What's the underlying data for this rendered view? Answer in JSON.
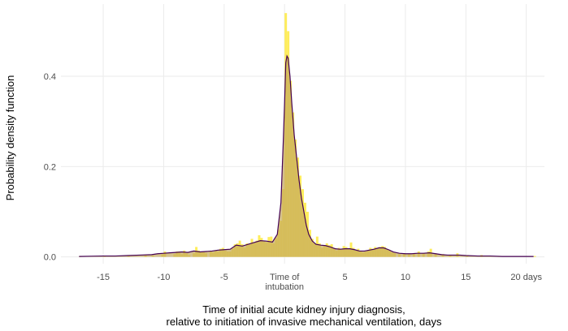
{
  "chart_data": {
    "type": "area",
    "title": "",
    "xlabel_line1": "Time of initial acute kidney injury diagnosis,",
    "xlabel_line2": "relative to initiation of invasive mechanical ventilation, days",
    "ylabel": "Probability density function",
    "xlim": [
      -18.5,
      21.5
    ],
    "ylim": [
      -0.015,
      0.56
    ],
    "grid": true,
    "x_ticks": [
      {
        "value": -15,
        "label": "-15"
      },
      {
        "value": -10,
        "label": "-10"
      },
      {
        "value": -5,
        "label": "-5"
      },
      {
        "value": 0,
        "label": "Time of",
        "label2": "intubation"
      },
      {
        "value": 5,
        "label": "5"
      },
      {
        "value": 10,
        "label": "10"
      },
      {
        "value": 15,
        "label": "15"
      },
      {
        "value": 20,
        "label": "20 days"
      }
    ],
    "y_ticks": [
      {
        "value": 0.0,
        "label": "0.0"
      },
      {
        "value": 0.2,
        "label": "0.2"
      },
      {
        "value": 0.4,
        "label": "0.4"
      }
    ],
    "histogram": {
      "bin_width": 0.2,
      "fill_color": "#FDE725",
      "fill_opacity": 0.75,
      "bins": [
        [
          -17.0,
          0.002
        ],
        [
          -15.0,
          0.002
        ],
        [
          -13.0,
          0.002
        ],
        [
          -11.6,
          0.004
        ],
        [
          -11.0,
          0.003
        ],
        [
          -10.2,
          0.006
        ],
        [
          -10.0,
          0.012
        ],
        [
          -9.2,
          0.006
        ],
        [
          -9.0,
          0.012
        ],
        [
          -8.8,
          0.012
        ],
        [
          -8.6,
          0.006
        ],
        [
          -8.4,
          0.014
        ],
        [
          -8.2,
          0.008
        ],
        [
          -8.0,
          0.004
        ],
        [
          -7.6,
          0.008
        ],
        [
          -7.4,
          0.022
        ],
        [
          -7.2,
          0.014
        ],
        [
          -7.0,
          0.01
        ],
        [
          -6.8,
          0.012
        ],
        [
          -6.6,
          0.008
        ],
        [
          -6.2,
          0.012
        ],
        [
          -6.0,
          0.01
        ],
        [
          -5.8,
          0.014
        ],
        [
          -5.6,
          0.012
        ],
        [
          -5.4,
          0.018
        ],
        [
          -5.2,
          0.02
        ],
        [
          -5.0,
          0.014
        ],
        [
          -4.8,
          0.012
        ],
        [
          -4.6,
          0.012
        ],
        [
          -4.4,
          0.018
        ],
        [
          -4.2,
          0.028
        ],
        [
          -4.0,
          0.03
        ],
        [
          -3.8,
          0.036
        ],
        [
          -3.6,
          0.028
        ],
        [
          -3.4,
          0.02
        ],
        [
          -3.2,
          0.03
        ],
        [
          -3.0,
          0.028
        ],
        [
          -2.8,
          0.04
        ],
        [
          -2.6,
          0.032
        ],
        [
          -2.4,
          0.036
        ],
        [
          -2.2,
          0.048
        ],
        [
          -2.0,
          0.042
        ],
        [
          -1.8,
          0.036
        ],
        [
          -1.6,
          0.032
        ],
        [
          -1.4,
          0.044
        ],
        [
          -1.2,
          0.045
        ],
        [
          -1.0,
          0.03
        ],
        [
          -0.8,
          0.042
        ],
        [
          -0.6,
          0.06
        ],
        [
          -0.4,
          0.08
        ],
        [
          -0.2,
          0.15
        ],
        [
          0.0,
          0.54
        ],
        [
          0.2,
          0.5
        ],
        [
          0.4,
          0.39
        ],
        [
          0.6,
          0.32
        ],
        [
          0.8,
          0.26
        ],
        [
          1.0,
          0.22
        ],
        [
          1.2,
          0.18
        ],
        [
          1.4,
          0.15
        ],
        [
          1.6,
          0.12
        ],
        [
          1.8,
          0.1
        ],
        [
          2.0,
          0.06
        ],
        [
          2.2,
          0.04
        ],
        [
          2.4,
          0.03
        ],
        [
          2.6,
          0.045
        ],
        [
          2.8,
          0.03
        ],
        [
          3.0,
          0.02
        ],
        [
          3.2,
          0.024
        ],
        [
          3.4,
          0.03
        ],
        [
          3.6,
          0.026
        ],
        [
          3.8,
          0.028
        ],
        [
          4.0,
          0.02
        ],
        [
          4.2,
          0.014
        ],
        [
          4.4,
          0.02
        ],
        [
          4.6,
          0.016
        ],
        [
          4.8,
          0.024
        ],
        [
          5.0,
          0.022
        ],
        [
          5.2,
          0.018
        ],
        [
          5.4,
          0.032
        ],
        [
          5.6,
          0.02
        ],
        [
          5.8,
          0.014
        ],
        [
          6.0,
          0.018
        ],
        [
          6.2,
          0.012
        ],
        [
          6.4,
          0.01
        ],
        [
          6.6,
          0.012
        ],
        [
          6.8,
          0.014
        ],
        [
          7.0,
          0.02
        ],
        [
          7.2,
          0.018
        ],
        [
          7.4,
          0.022
        ],
        [
          7.6,
          0.018
        ],
        [
          7.8,
          0.022
        ],
        [
          8.0,
          0.024
        ],
        [
          8.2,
          0.022
        ],
        [
          8.4,
          0.016
        ],
        [
          8.6,
          0.014
        ],
        [
          8.8,
          0.01
        ],
        [
          9.0,
          0.008
        ],
        [
          9.4,
          0.006
        ],
        [
          9.8,
          0.008
        ],
        [
          10.2,
          0.006
        ],
        [
          10.6,
          0.008
        ],
        [
          11.0,
          0.012
        ],
        [
          11.4,
          0.008
        ],
        [
          11.8,
          0.012
        ],
        [
          12.0,
          0.018
        ],
        [
          12.4,
          0.008
        ],
        [
          13.0,
          0.006
        ],
        [
          13.6,
          0.004
        ],
        [
          14.2,
          0.008
        ],
        [
          15.0,
          0.004
        ],
        [
          16.2,
          0.004
        ],
        [
          17.6,
          0.002
        ],
        [
          20.6,
          0.002
        ]
      ]
    },
    "density": {
      "line_color": "#440154",
      "fill_color": "#C5A85A",
      "fill_opacity": 0.7,
      "points": [
        [
          -17,
          0.001
        ],
        [
          -16,
          0.0015
        ],
        [
          -15,
          0.002
        ],
        [
          -14,
          0.002
        ],
        [
          -13,
          0.003
        ],
        [
          -12,
          0.004
        ],
        [
          -11,
          0.005
        ],
        [
          -10.5,
          0.007
        ],
        [
          -10,
          0.008
        ],
        [
          -9.5,
          0.009
        ],
        [
          -9,
          0.01
        ],
        [
          -8.5,
          0.011
        ],
        [
          -8,
          0.01
        ],
        [
          -7.5,
          0.013
        ],
        [
          -7,
          0.011
        ],
        [
          -6.5,
          0.012
        ],
        [
          -6,
          0.013
        ],
        [
          -5.5,
          0.015
        ],
        [
          -5,
          0.016
        ],
        [
          -4.5,
          0.017
        ],
        [
          -4,
          0.026
        ],
        [
          -3.5,
          0.024
        ],
        [
          -3,
          0.028
        ],
        [
          -2.5,
          0.032
        ],
        [
          -2,
          0.036
        ],
        [
          -1.5,
          0.035
        ],
        [
          -1,
          0.033
        ],
        [
          -0.6,
          0.05
        ],
        [
          -0.3,
          0.12
        ],
        [
          -0.1,
          0.26
        ],
        [
          0,
          0.34
        ],
        [
          0.1,
          0.43
        ],
        [
          0.2,
          0.445
        ],
        [
          0.3,
          0.44
        ],
        [
          0.45,
          0.4
        ],
        [
          0.6,
          0.34
        ],
        [
          0.8,
          0.27
        ],
        [
          1.0,
          0.22
        ],
        [
          1.2,
          0.17
        ],
        [
          1.4,
          0.13
        ],
        [
          1.6,
          0.1
        ],
        [
          1.8,
          0.07
        ],
        [
          2.0,
          0.05
        ],
        [
          2.3,
          0.035
        ],
        [
          2.6,
          0.028
        ],
        [
          3.0,
          0.026
        ],
        [
          3.4,
          0.025
        ],
        [
          3.8,
          0.022
        ],
        [
          4.2,
          0.018
        ],
        [
          4.6,
          0.017
        ],
        [
          5.0,
          0.018
        ],
        [
          5.4,
          0.018
        ],
        [
          5.8,
          0.016
        ],
        [
          6.2,
          0.013
        ],
        [
          6.6,
          0.013
        ],
        [
          7.0,
          0.015
        ],
        [
          7.4,
          0.017
        ],
        [
          7.8,
          0.02
        ],
        [
          8.2,
          0.02
        ],
        [
          8.6,
          0.016
        ],
        [
          9.0,
          0.011
        ],
        [
          9.5,
          0.008
        ],
        [
          10,
          0.007
        ],
        [
          10.5,
          0.007
        ],
        [
          11,
          0.008
        ],
        [
          11.5,
          0.008
        ],
        [
          12,
          0.009
        ],
        [
          12.5,
          0.007
        ],
        [
          13,
          0.005
        ],
        [
          13.5,
          0.004
        ],
        [
          14,
          0.004
        ],
        [
          14.5,
          0.004
        ],
        [
          15,
          0.003
        ],
        [
          16,
          0.002
        ],
        [
          17,
          0.002
        ],
        [
          18,
          0.001
        ],
        [
          19,
          0.001
        ],
        [
          20.6,
          0.001
        ]
      ]
    }
  }
}
